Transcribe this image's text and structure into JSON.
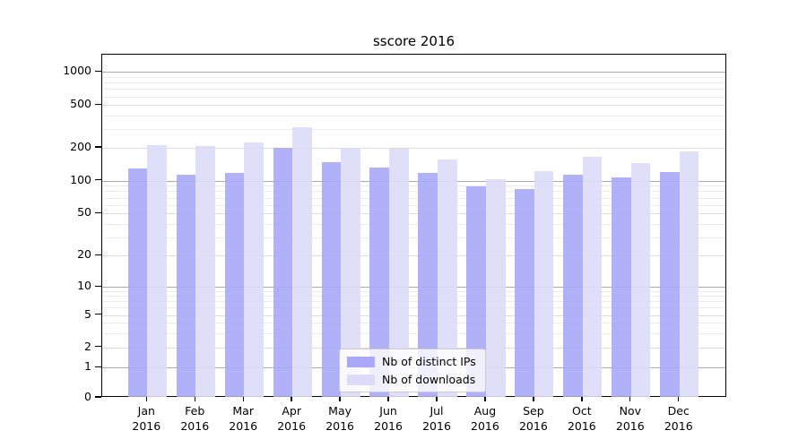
{
  "title": "sscore 2016",
  "chart_data": {
    "type": "bar",
    "title": "sscore 2016",
    "categories": [
      "Jan 2016",
      "Feb 2016",
      "Mar 2016",
      "Apr 2016",
      "May 2016",
      "Jun 2016",
      "Jul 2016",
      "Aug 2016",
      "Sep 2016",
      "Oct 2016",
      "Nov 2016",
      "Dec 2016"
    ],
    "series": [
      {
        "name": "Nb of distinct IPs",
        "color": "#a9a9f8",
        "values": [
          130,
          113,
          118,
          200,
          147,
          133,
          118,
          89,
          84,
          113,
          108,
          121
        ]
      },
      {
        "name": "Nb of downloads",
        "color": "#dcdcf8",
        "values": [
          210,
          207,
          222,
          310,
          201,
          196,
          157,
          104,
          123,
          166,
          146,
          186
        ]
      }
    ],
    "xlabel": "",
    "ylabel": "",
    "yscale": "symlog",
    "ytick_labels": [
      "0",
      "1",
      "2",
      "5",
      "10",
      "20",
      "50",
      "100",
      "200",
      "500",
      "1000"
    ],
    "ytick_values": [
      0,
      1,
      2,
      5,
      10,
      20,
      50,
      100,
      200,
      500,
      1000
    ],
    "ylim": [
      0,
      1400
    ],
    "grid": "on",
    "legend_position": "lower center"
  }
}
